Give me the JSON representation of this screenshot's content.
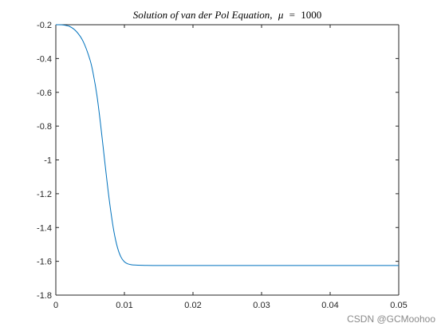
{
  "chart_data": {
    "type": "line",
    "title": "Solution of van der Pol Equation, μ = 1000",
    "title_parts": {
      "prefix": "Solution of van der Pol Equation,",
      "mu": "μ",
      "eq": "=",
      "value": "1000"
    },
    "xlabel": "",
    "ylabel": "",
    "xlim": [
      0,
      0.05
    ],
    "ylim": [
      -1.8,
      -0.2
    ],
    "xticks": [
      0,
      0.01,
      0.02,
      0.03,
      0.04,
      0.05
    ],
    "xtick_labels": [
      "0",
      "0.01",
      "0.02",
      "0.03",
      "0.04",
      "0.05"
    ],
    "yticks": [
      -0.2,
      -0.4,
      -0.6,
      -0.8,
      -1,
      -1.2,
      -1.4,
      -1.6,
      -1.8
    ],
    "ytick_labels": [
      "-0.2",
      "-0.4",
      "-0.6",
      "-0.8",
      "-1",
      "-1.2",
      "-1.4",
      "-1.6",
      "-1.8"
    ],
    "grid": false,
    "series": [
      {
        "color": "#0072BD",
        "x": [
          0,
          0.001,
          0.002,
          0.003,
          0.004,
          0.005,
          0.0055,
          0.006,
          0.0065,
          0.007,
          0.0075,
          0.008,
          0.0085,
          0.009,
          0.0095,
          0.01,
          0.0105,
          0.011,
          0.0115,
          0.012,
          0.013,
          0.015,
          0.02,
          0.03,
          0.04,
          0.05
        ],
        "y": [
          -0.2,
          -0.201,
          -0.21,
          -0.24,
          -0.3,
          -0.41,
          -0.5,
          -0.62,
          -0.78,
          -0.96,
          -1.14,
          -1.3,
          -1.43,
          -1.52,
          -1.575,
          -1.603,
          -1.615,
          -1.62,
          -1.622,
          -1.623,
          -1.624,
          -1.625,
          -1.625,
          -1.625,
          -1.625,
          -1.625
        ]
      }
    ]
  },
  "watermark": "CSDN @GCMoohoo"
}
